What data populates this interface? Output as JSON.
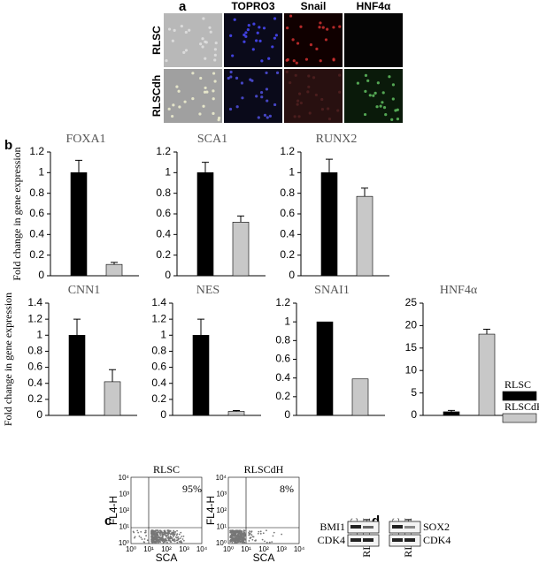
{
  "panel_labels": [
    "a",
    "b",
    "c",
    "d"
  ],
  "panel_a": {
    "columns": [
      "TOPRO3",
      "Snail",
      "HNF4α"
    ],
    "rows": [
      "RLSC",
      "RLSCdh"
    ]
  },
  "legend": [
    {
      "name": "RLSC",
      "color": "#000000"
    },
    {
      "name": "RLSCdH",
      "color": "#c8c8c8"
    }
  ],
  "chart_data": [
    {
      "type": "bar",
      "title": "FOXA1",
      "ylabel": "Fold change in gene expression",
      "values": [
        1.0,
        0.11
      ],
      "errors": [
        0.12,
        0.02
      ],
      "ylim": [
        0,
        1.2
      ],
      "yticks": [
        0,
        0.2,
        0.4,
        0.6,
        0.8,
        1,
        1.2
      ]
    },
    {
      "type": "bar",
      "title": "SCA1",
      "values": [
        1.0,
        0.52
      ],
      "errors": [
        0.1,
        0.06
      ],
      "ylim": [
        0,
        1.2
      ],
      "yticks": [
        0,
        0.2,
        0.4,
        0.6,
        0.8,
        1,
        1.2
      ]
    },
    {
      "type": "bar",
      "title": "RUNX2",
      "values": [
        1.0,
        0.77
      ],
      "errors": [
        0.13,
        0.08
      ],
      "ylim": [
        0,
        1.2
      ],
      "yticks": [
        0,
        0.2,
        0.4,
        0.6,
        0.8,
        1,
        1.2
      ]
    },
    {
      "type": "bar",
      "title": "CNN1",
      "ylabel": "Fold change in gene expression",
      "values": [
        1.0,
        0.42
      ],
      "errors": [
        0.2,
        0.15
      ],
      "ylim": [
        0,
        1.4
      ],
      "yticks": [
        0,
        0.2,
        0.4,
        0.6,
        0.8,
        1,
        1.2,
        1.4
      ]
    },
    {
      "type": "bar",
      "title": "NES",
      "values": [
        1.0,
        0.05
      ],
      "errors": [
        0.2,
        0.01
      ],
      "ylim": [
        0,
        1.4
      ],
      "yticks": [
        0,
        0.2,
        0.4,
        0.6,
        0.8,
        1,
        1.2,
        1.4
      ]
    },
    {
      "type": "bar",
      "title": "SNAI1",
      "values": [
        1.0,
        0.39
      ],
      "ylim": [
        0,
        1.2
      ],
      "yticks": [
        0,
        0.2,
        0.4,
        0.6,
        0.8,
        1,
        1.2
      ]
    },
    {
      "type": "bar",
      "title": "HNF4α",
      "values": [
        0.8,
        18.1
      ],
      "errors": [
        0.3,
        1.1
      ],
      "ylim": [
        0,
        25
      ],
      "yticks": [
        0,
        5,
        10,
        15,
        20,
        25
      ]
    }
  ],
  "panel_c": {
    "plots": [
      {
        "title": "RLSC",
        "percent": "95%"
      },
      {
        "title": "RLSCdH",
        "percent": "8%"
      }
    ],
    "xlabel": "SCA",
    "ylabel": "FL4-H",
    "axis_ticks": [
      "10⁰",
      "10¹",
      "10²",
      "10³",
      "10⁴"
    ]
  },
  "panel_d": {
    "lanes": [
      "RLSC",
      "RLSCdH"
    ],
    "left_rows": [
      "BMI1",
      "CDK4"
    ],
    "right_rows": [
      "SOX2",
      "CDK4"
    ]
  }
}
